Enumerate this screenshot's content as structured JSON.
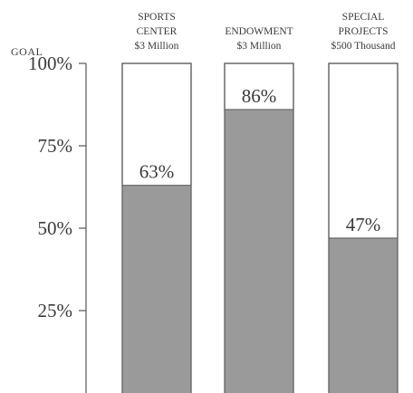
{
  "chart_data": {
    "type": "bar",
    "axis_title": "GOAL",
    "ylim": [
      0,
      100
    ],
    "y_ticks": [
      {
        "value": 100,
        "label": "100%"
      },
      {
        "value": 75,
        "label": "75%"
      },
      {
        "value": 50,
        "label": "50%"
      },
      {
        "value": 25,
        "label": "25%"
      }
    ],
    "categories": [
      {
        "name_lines": [
          "SPORTS",
          "CENTER"
        ],
        "goal": "$3 Million",
        "value": 63,
        "label": "63%"
      },
      {
        "name_lines": [
          "ENDOWMENT"
        ],
        "goal": "$3 Million",
        "value": 86,
        "label": "86%"
      },
      {
        "name_lines": [
          "SPECIAL",
          "PROJECTS"
        ],
        "goal": "$500 Thousand",
        "value": 47,
        "label": "47%"
      }
    ],
    "bar_fill_color": "#9a9a9a",
    "frame_color": "#444444",
    "grid": false
  }
}
